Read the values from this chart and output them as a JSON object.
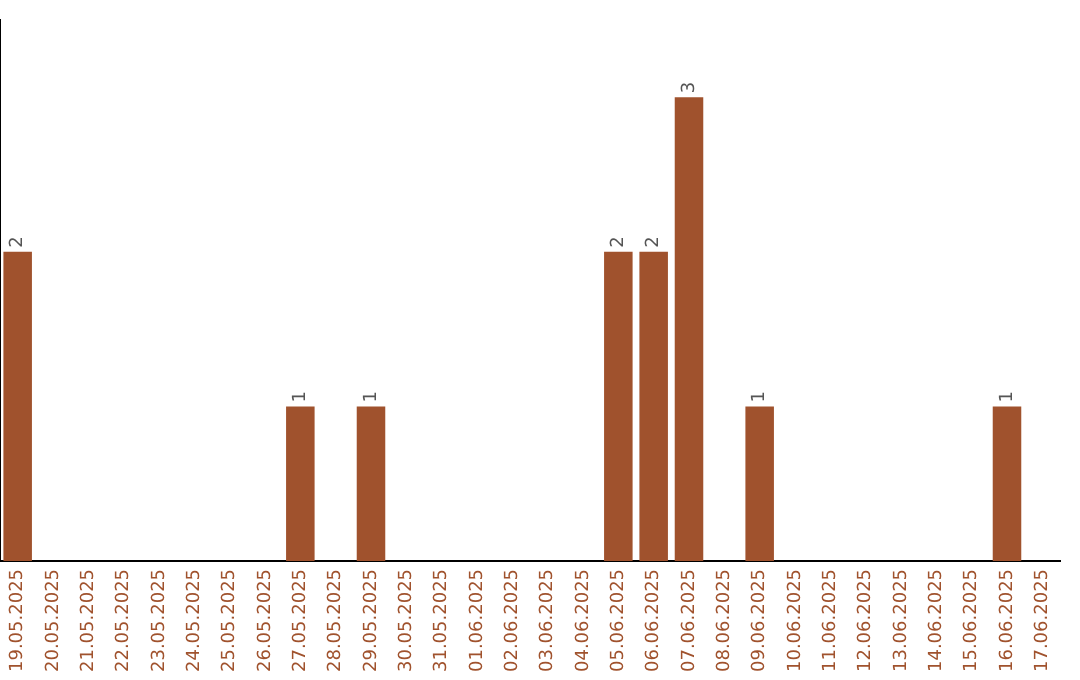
{
  "chart_data": {
    "type": "bar",
    "categories": [
      "19.05.2025",
      "20.05.2025",
      "21.05.2025",
      "22.05.2025",
      "23.05.2025",
      "24.05.2025",
      "25.05.2025",
      "26.05.2025",
      "27.05.2025",
      "28.05.2025",
      "29.05.2025",
      "30.05.2025",
      "31.05.2025",
      "01.06.2025",
      "02.06.2025",
      "03.06.2025",
      "04.06.2025",
      "05.06.2025",
      "06.06.2025",
      "07.06.2025",
      "08.06.2025",
      "09.06.2025",
      "10.06.2025",
      "11.06.2025",
      "12.06.2025",
      "13.06.2025",
      "14.06.2025",
      "15.06.2025",
      "16.06.2025",
      "17.06.2025"
    ],
    "values": [
      2,
      0,
      0,
      0,
      0,
      0,
      0,
      0,
      1,
      0,
      1,
      0,
      0,
      0,
      0,
      0,
      0,
      2,
      2,
      3,
      0,
      1,
      0,
      0,
      0,
      0,
      0,
      0,
      1,
      0
    ],
    "value_labels": [
      "2",
      null,
      null,
      null,
      null,
      null,
      null,
      null,
      "1",
      null,
      "1",
      null,
      null,
      null,
      null,
      null,
      null,
      "2",
      "2",
      "3",
      null,
      "1",
      null,
      null,
      null,
      null,
      null,
      null,
      "1",
      null
    ],
    "color": "#a0522d",
    "grid": false,
    "legend": false,
    "tick_labels": "x"
  }
}
